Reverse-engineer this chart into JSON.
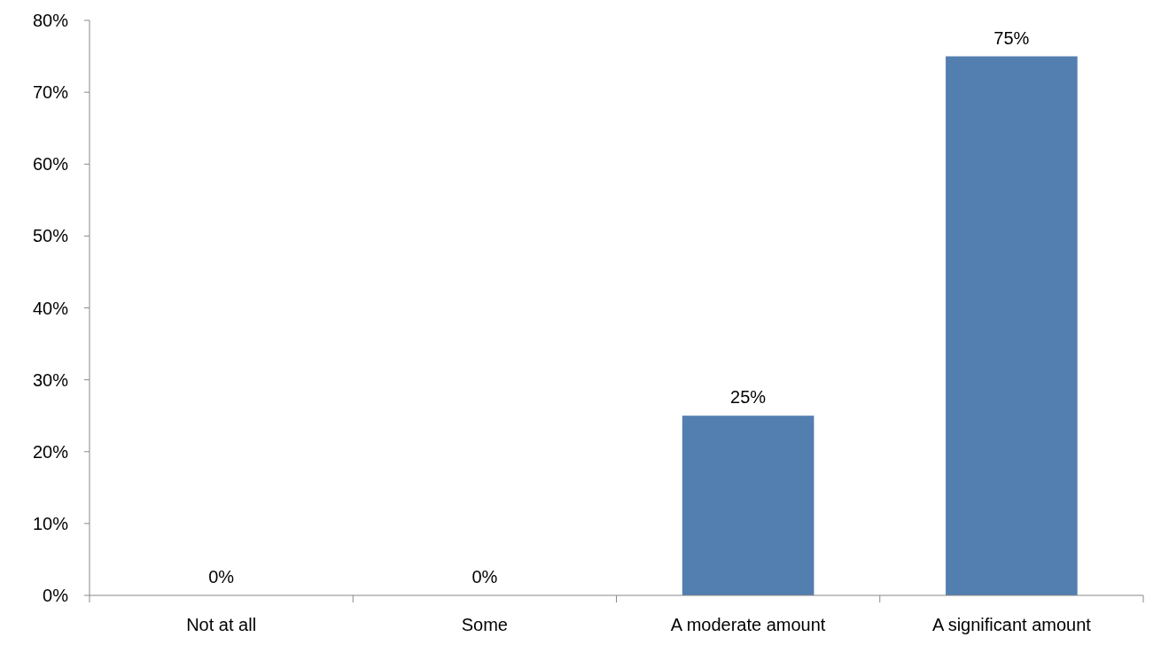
{
  "chart_data": {
    "type": "bar",
    "categories": [
      "Not at all",
      "Some",
      "A moderate amount",
      "A significant amount"
    ],
    "values": [
      0,
      0,
      25,
      75
    ],
    "color": "#537eb0",
    "value_labels": [
      "0%",
      "0%",
      "25%",
      "75%"
    ],
    "ylim": [
      0,
      80
    ],
    "yticks": [
      {
        "value": 0,
        "label": "0%"
      },
      {
        "value": 10,
        "label": "10%"
      },
      {
        "value": 20,
        "label": "20%"
      },
      {
        "value": 30,
        "label": "30%"
      },
      {
        "value": 40,
        "label": "40%"
      },
      {
        "value": 50,
        "label": "50%"
      },
      {
        "value": 60,
        "label": "60%"
      },
      {
        "value": 70,
        "label": "70%"
      },
      {
        "value": 80,
        "label": "80%"
      }
    ],
    "grid": false
  }
}
